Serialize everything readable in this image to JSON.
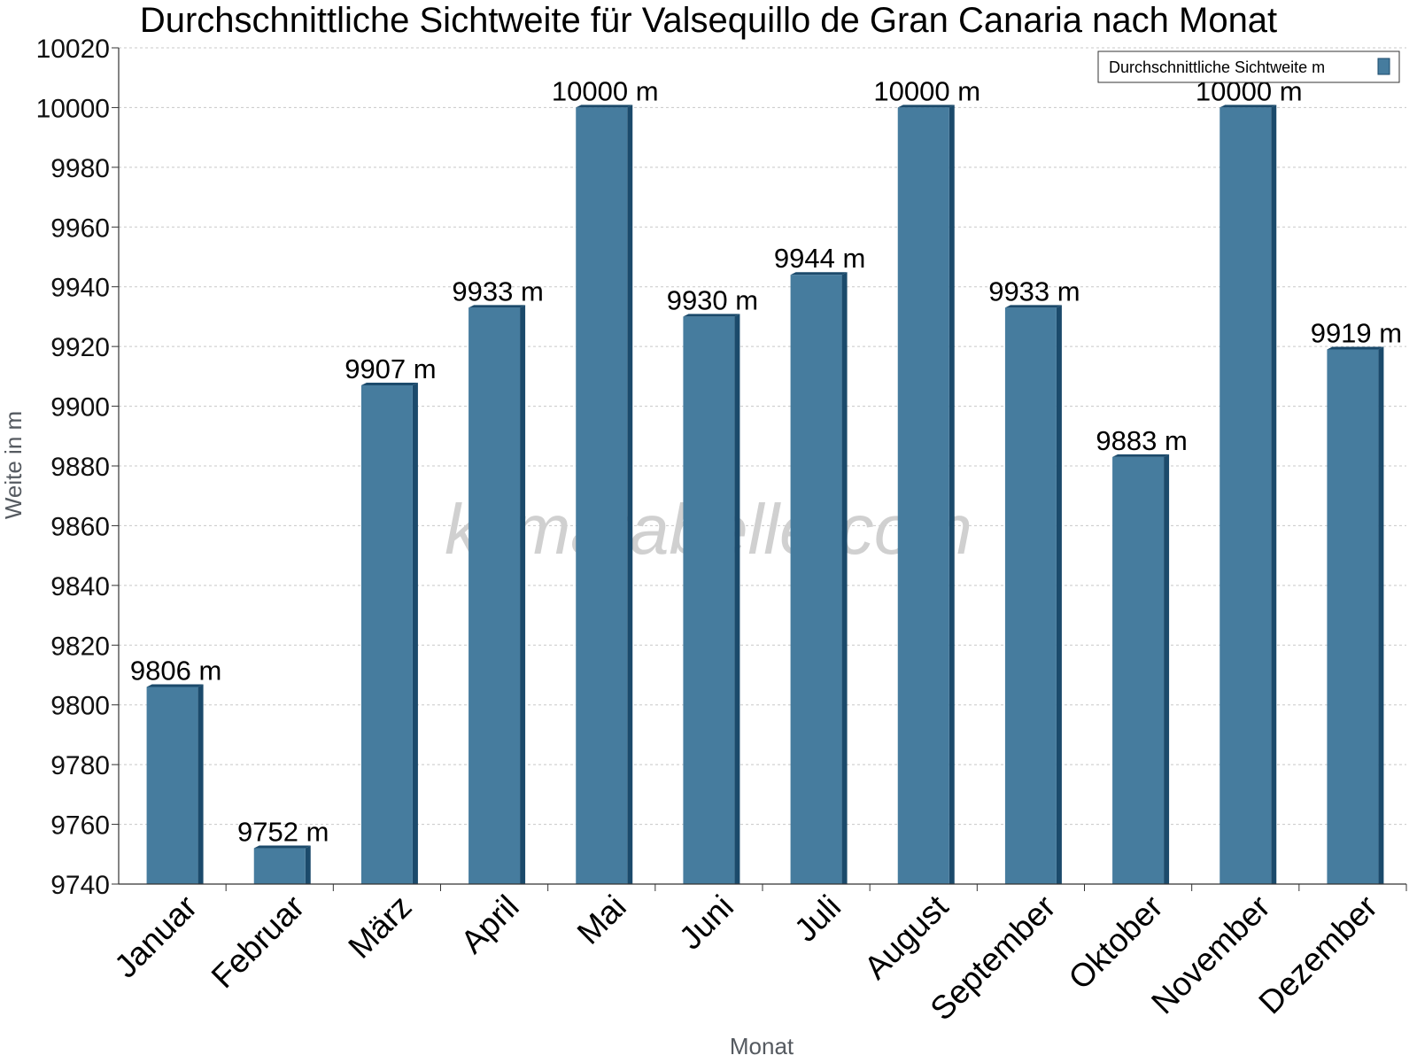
{
  "chart_data": {
    "type": "bar",
    "title": "Durchschnittliche Sichtweite für Valsequillo de Gran Canaria nach Monat",
    "xlabel": "Monat",
    "ylabel": "Weite in m",
    "categories": [
      "Januar",
      "Februar",
      "März",
      "April",
      "Mai",
      "Juni",
      "Juli",
      "August",
      "September",
      "Oktober",
      "November",
      "Dezember"
    ],
    "series": [
      {
        "name": "Durchschnittliche Sichtweite m",
        "values": [
          9806,
          9752,
          9907,
          9933,
          10000,
          9930,
          9944,
          10000,
          9933,
          9883,
          10000,
          9919
        ],
        "labels": [
          "9806 m",
          "9752 m",
          "9907 m",
          "9933 m",
          "10000 m",
          "9930 m",
          "9944 m",
          "10000 m",
          "9933 m",
          "9883 m",
          "10000 m",
          "9919 m"
        ]
      }
    ],
    "ylim": [
      9740,
      10020
    ],
    "yticks": [
      9740,
      9760,
      9780,
      9800,
      9820,
      9840,
      9860,
      9880,
      9900,
      9920,
      9940,
      9960,
      9980,
      10000,
      10020
    ],
    "grid": true,
    "legend": "top-right",
    "watermark": "klimatabelle.com",
    "colors": {
      "bar": "#467c9e",
      "bar_side": "#1b4a6b",
      "grid": "#c8c8c8"
    }
  }
}
